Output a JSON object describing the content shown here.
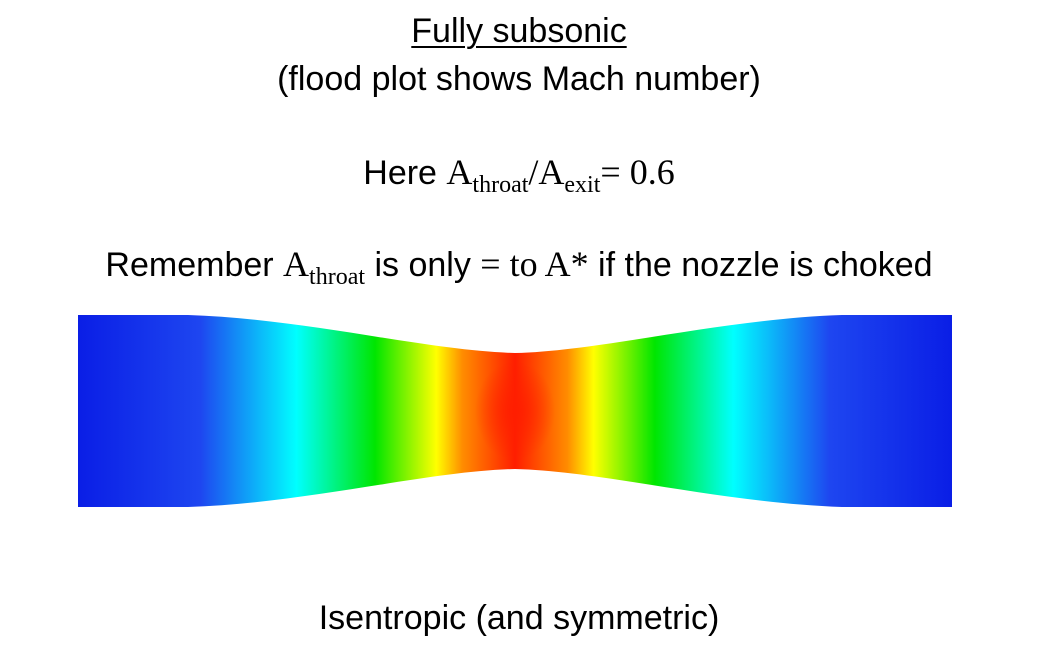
{
  "title": "Fully subsonic",
  "subtitle": "(flood plot shows Mach number)",
  "ratio_line": {
    "prefix": "Here ",
    "a1": "A",
    "a1_sub": "throat",
    "slash": "/",
    "a2": "A",
    "a2_sub": "exit",
    "suffix": "= 0.6"
  },
  "remember_line": {
    "prefix": "Remember ",
    "a": "A",
    "a_sub": "throat",
    "middle": " is only ",
    "eq": "= to A*",
    "suffix": " if the nozzle is choked"
  },
  "footer": "Isentropic (and symmetric)",
  "colors": {
    "low_mach": "#0a1ee6",
    "mid_low": "#00ffff",
    "mid": "#00e600",
    "mid_high": "#ffff00",
    "high_mach": "#ff1e00"
  }
}
